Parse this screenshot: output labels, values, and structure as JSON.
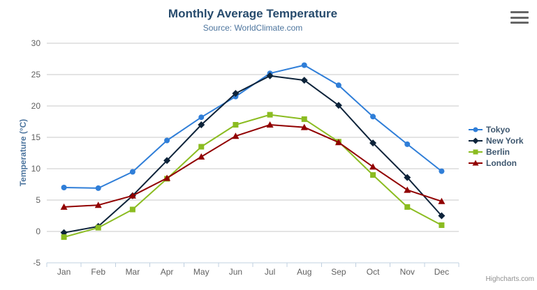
{
  "header": {
    "title": "Monthly Average Temperature",
    "subtitle": "Source: WorldClimate.com"
  },
  "export_menu": {
    "icon": "hamburger-menu-icon"
  },
  "credits": "Highcharts.com",
  "colors": {
    "title": "#274b6d",
    "subtitle": "#4d759e",
    "axis_title": "#4d759e",
    "tick_label": "#606060",
    "gridline": "#c8c8c8",
    "axis_line": "#c0d0e0",
    "legend_text": "#3e576f",
    "credits_text": "#909090"
  },
  "chart_data": {
    "type": "line",
    "title": "Monthly Average Temperature",
    "subtitle": "Source: WorldClimate.com",
    "xlabel": "",
    "ylabel": "Temperature (°C)",
    "ylim": [
      -5,
      30
    ],
    "ytick_step": 5,
    "grid": true,
    "legend_position": "right",
    "categories": [
      "Jan",
      "Feb",
      "Mar",
      "Apr",
      "May",
      "Jun",
      "Jul",
      "Aug",
      "Sep",
      "Oct",
      "Nov",
      "Dec"
    ],
    "series": [
      {
        "name": "Tokyo",
        "color": "#2f7ed8",
        "marker": "circle",
        "values": [
          7.0,
          6.9,
          9.5,
          14.5,
          18.2,
          21.5,
          25.2,
          26.5,
          23.3,
          18.3,
          13.9,
          9.6
        ]
      },
      {
        "name": "New York",
        "color": "#0d233a",
        "marker": "diamond",
        "values": [
          -0.2,
          0.8,
          5.7,
          11.3,
          17.0,
          22.0,
          24.8,
          24.1,
          20.1,
          14.1,
          8.6,
          2.5
        ]
      },
      {
        "name": "Berlin",
        "color": "#8bbc21",
        "marker": "square",
        "values": [
          -0.9,
          0.6,
          3.5,
          8.4,
          13.5,
          17.0,
          18.6,
          17.9,
          14.3,
          9.0,
          3.9,
          1.0
        ]
      },
      {
        "name": "London",
        "color": "#910000",
        "marker": "triangle",
        "values": [
          3.9,
          4.2,
          5.7,
          8.5,
          11.9,
          15.2,
          17.0,
          16.6,
          14.2,
          10.3,
          6.6,
          4.8
        ]
      }
    ]
  }
}
